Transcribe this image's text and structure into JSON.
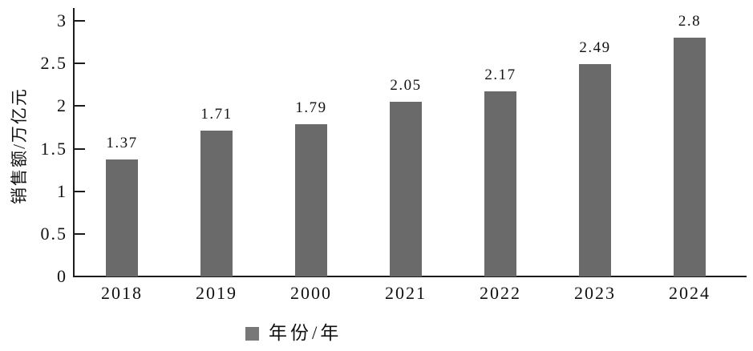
{
  "chart_data": {
    "type": "bar",
    "title": "",
    "xlabel": "",
    "ylabel": "销售额/万亿元",
    "categories": [
      "2018",
      "2019",
      "2000",
      "2021",
      "2022",
      "2023",
      "2024"
    ],
    "values": [
      1.37,
      1.71,
      1.79,
      2.05,
      2.17,
      2.49,
      2.8
    ],
    "value_labels": [
      "1.37",
      "1.71",
      "1.79",
      "2.05",
      "2.17",
      "2.49",
      "2.8"
    ],
    "ylim": [
      0,
      3
    ],
    "yticks": [
      0,
      0.5,
      1,
      1.5,
      2,
      2.5,
      3
    ],
    "ytick_labels": [
      "0",
      "0.5",
      "1",
      "1.5",
      "2",
      "2.5",
      "3"
    ],
    "grid": false,
    "legend": {
      "label": "年份/年",
      "position": "bottom"
    },
    "colors": {
      "bar": "#6a6a6a",
      "legend_swatch": "#787878",
      "axis": "#1c1c1c",
      "text": "#111111"
    }
  }
}
